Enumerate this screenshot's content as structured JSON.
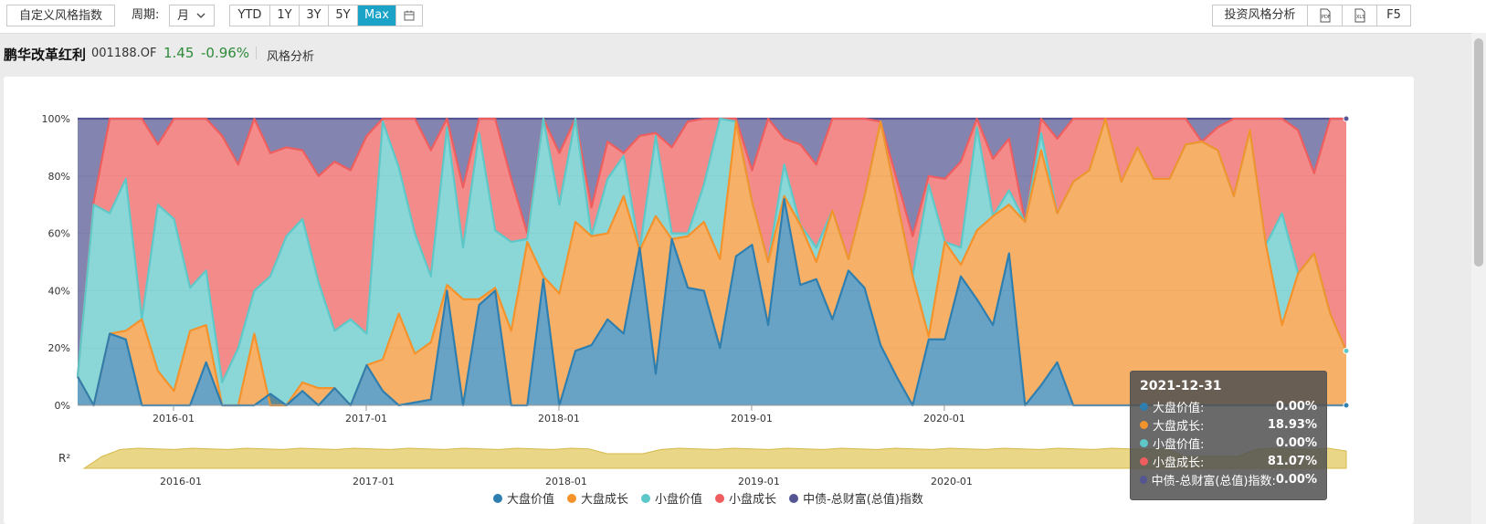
{
  "toolbar": {
    "custom_style": "自定义风格指数",
    "period_label": "周期:",
    "period_value": "月",
    "ranges": [
      "YTD",
      "1Y",
      "3Y",
      "5Y",
      "Max"
    ],
    "active_range": "Max",
    "style_analysis": "投资风格分析",
    "pdf": "PDF",
    "xls": "XLS",
    "f5": "F5"
  },
  "fund": {
    "name": "鹏华改革红利",
    "code": "001188.OF",
    "price": "1.45",
    "change": "-0.96%",
    "tab": "风格分析"
  },
  "colors": {
    "large_value": "#2e7fb0",
    "large_growth": "#f4922c",
    "small_value": "#5ec8c8",
    "small_growth": "#ee5e5e",
    "bond": "#545592",
    "r2": "#e6cf72",
    "accent": "#1aa3c6",
    "positive": "#2e8b3a"
  },
  "tooltip": {
    "date": "2021-12-31",
    "rows": [
      {
        "name": "大盘价值:",
        "value": "0.00%"
      },
      {
        "name": "大盘成长:",
        "value": "18.93%"
      },
      {
        "name": "小盘价值:",
        "value": "0.00%"
      },
      {
        "name": "小盘成长:",
        "value": "81.07%"
      },
      {
        "name": "中债-总财富(总值)指数:",
        "value": "0.00%"
      }
    ]
  },
  "chart_data": {
    "type": "area",
    "stacked": true,
    "x_ticks": [
      "2016-01",
      "2017-01",
      "2018-01",
      "2019-01",
      "2020-01"
    ],
    "y_ticks": [
      "0%",
      "20%",
      "40%",
      "60%",
      "80%",
      "100%"
    ],
    "ylim": [
      0,
      100
    ],
    "r2_label": "R²",
    "series_names": [
      "大盘价值",
      "大盘成长",
      "小盘价值",
      "小盘成长",
      "中债-总财富(总值)指数"
    ],
    "cumulative": {
      "c1": [
        10,
        0,
        25,
        23,
        0,
        0,
        0,
        0,
        15,
        0,
        0,
        0,
        4,
        0,
        5,
        0,
        6,
        0,
        14,
        5,
        0,
        1,
        2,
        40,
        0,
        35,
        40,
        0,
        0,
        44,
        0,
        19,
        21,
        30,
        25,
        55,
        11,
        58,
        41,
        40,
        20,
        52,
        56,
        28,
        72,
        42,
        44,
        30,
        47,
        41,
        21,
        10,
        0,
        23,
        23,
        45,
        37,
        28,
        53,
        0,
        7,
        15,
        0,
        0,
        0,
        0,
        0,
        0,
        0,
        0,
        0,
        0,
        0,
        0,
        0,
        0,
        0,
        0,
        0,
        0
      ],
      "c2": [
        10,
        0,
        25,
        26,
        30,
        12,
        5,
        26,
        28,
        0,
        0,
        25,
        0,
        0,
        8,
        6,
        6,
        0,
        14,
        16,
        32,
        18,
        22,
        42,
        37,
        37,
        41,
        26,
        57,
        45,
        39,
        64,
        59,
        60,
        73,
        54,
        66,
        58,
        59,
        64,
        51,
        99,
        71,
        50,
        73,
        63,
        50,
        68,
        51,
        73,
        99,
        72,
        45,
        24,
        57,
        49,
        61,
        66,
        70,
        64,
        89,
        67,
        78,
        82,
        100,
        78,
        90,
        79,
        79,
        91,
        92,
        89,
        73,
        96,
        56,
        28,
        46,
        53,
        32,
        19
      ],
      "c3": [
        10,
        70,
        67,
        79,
        30,
        70,
        65,
        41,
        47,
        8,
        20,
        40,
        45,
        59,
        65,
        43,
        26,
        30,
        25,
        99,
        83,
        60,
        45,
        97,
        55,
        95,
        61,
        57,
        58,
        100,
        70,
        100,
        59,
        79,
        87,
        54,
        94,
        60,
        60,
        77,
        100,
        99,
        71,
        50,
        84,
        63,
        55,
        68,
        51,
        73,
        99,
        72,
        45,
        77,
        57,
        55,
        97,
        66,
        75,
        64,
        95,
        67,
        78,
        82,
        100,
        78,
        90,
        79,
        79,
        91,
        92,
        89,
        73,
        96,
        56,
        67,
        46,
        53,
        32,
        19
      ],
      "c4": [
        10,
        71,
        100,
        100,
        100,
        91,
        100,
        100,
        100,
        94,
        84,
        100,
        88,
        90,
        89,
        80,
        85,
        82,
        94,
        100,
        100,
        100,
        89,
        100,
        76,
        100,
        100,
        79,
        60,
        100,
        88,
        100,
        69,
        92,
        88,
        94,
        95,
        90,
        99,
        100,
        100,
        100,
        82,
        100,
        93,
        91,
        84,
        100,
        100,
        100,
        99,
        79,
        59,
        80,
        79,
        85,
        100,
        86,
        93,
        64,
        100,
        93,
        100,
        100,
        100,
        100,
        100,
        100,
        100,
        100,
        92,
        97,
        100,
        100,
        100,
        100,
        96,
        81,
        100,
        100
      ]
    }
  }
}
